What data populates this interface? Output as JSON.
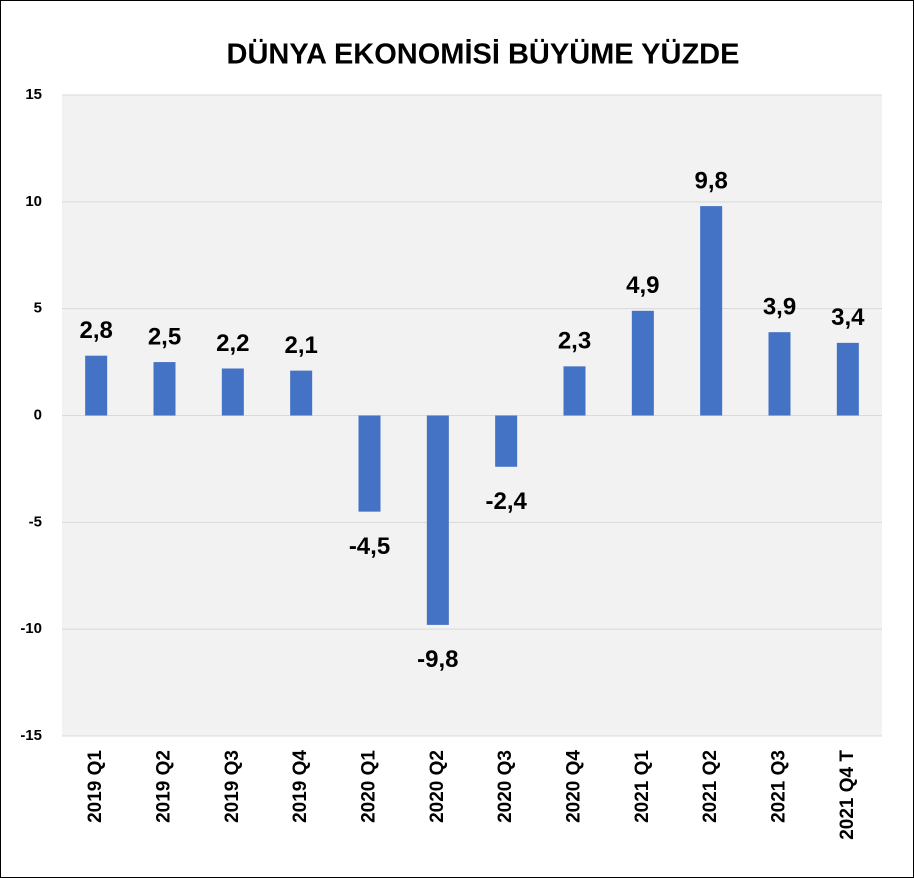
{
  "chart_data": {
    "type": "bar",
    "title": "DÜNYA EKONOMİSİ BÜYÜME YÜZDE",
    "categories": [
      "2019 Q1",
      "2019 Q2",
      "2019 Q3",
      "2019 Q4",
      "2020 Q1",
      "2020 Q2",
      "2020 Q3",
      "2020 Q4",
      "2021 Q1",
      "2021 Q2",
      "2021 Q3",
      "2021 Q4 T"
    ],
    "values": [
      2.8,
      2.5,
      2.2,
      2.1,
      -4.5,
      -9.8,
      -2.4,
      2.3,
      4.9,
      9.8,
      3.9,
      3.4
    ],
    "value_labels": [
      "2,8",
      "2,5",
      "2,2",
      "2,1",
      "-4,5",
      "-9,8",
      "-2,4",
      "2,3",
      "4,9",
      "9,8",
      "3,9",
      "3,4"
    ],
    "color": "#4472c4",
    "ylim": [
      -15,
      15
    ],
    "yticks": [
      -15,
      -10,
      -5,
      0,
      5,
      10,
      15
    ],
    "grid": true
  }
}
